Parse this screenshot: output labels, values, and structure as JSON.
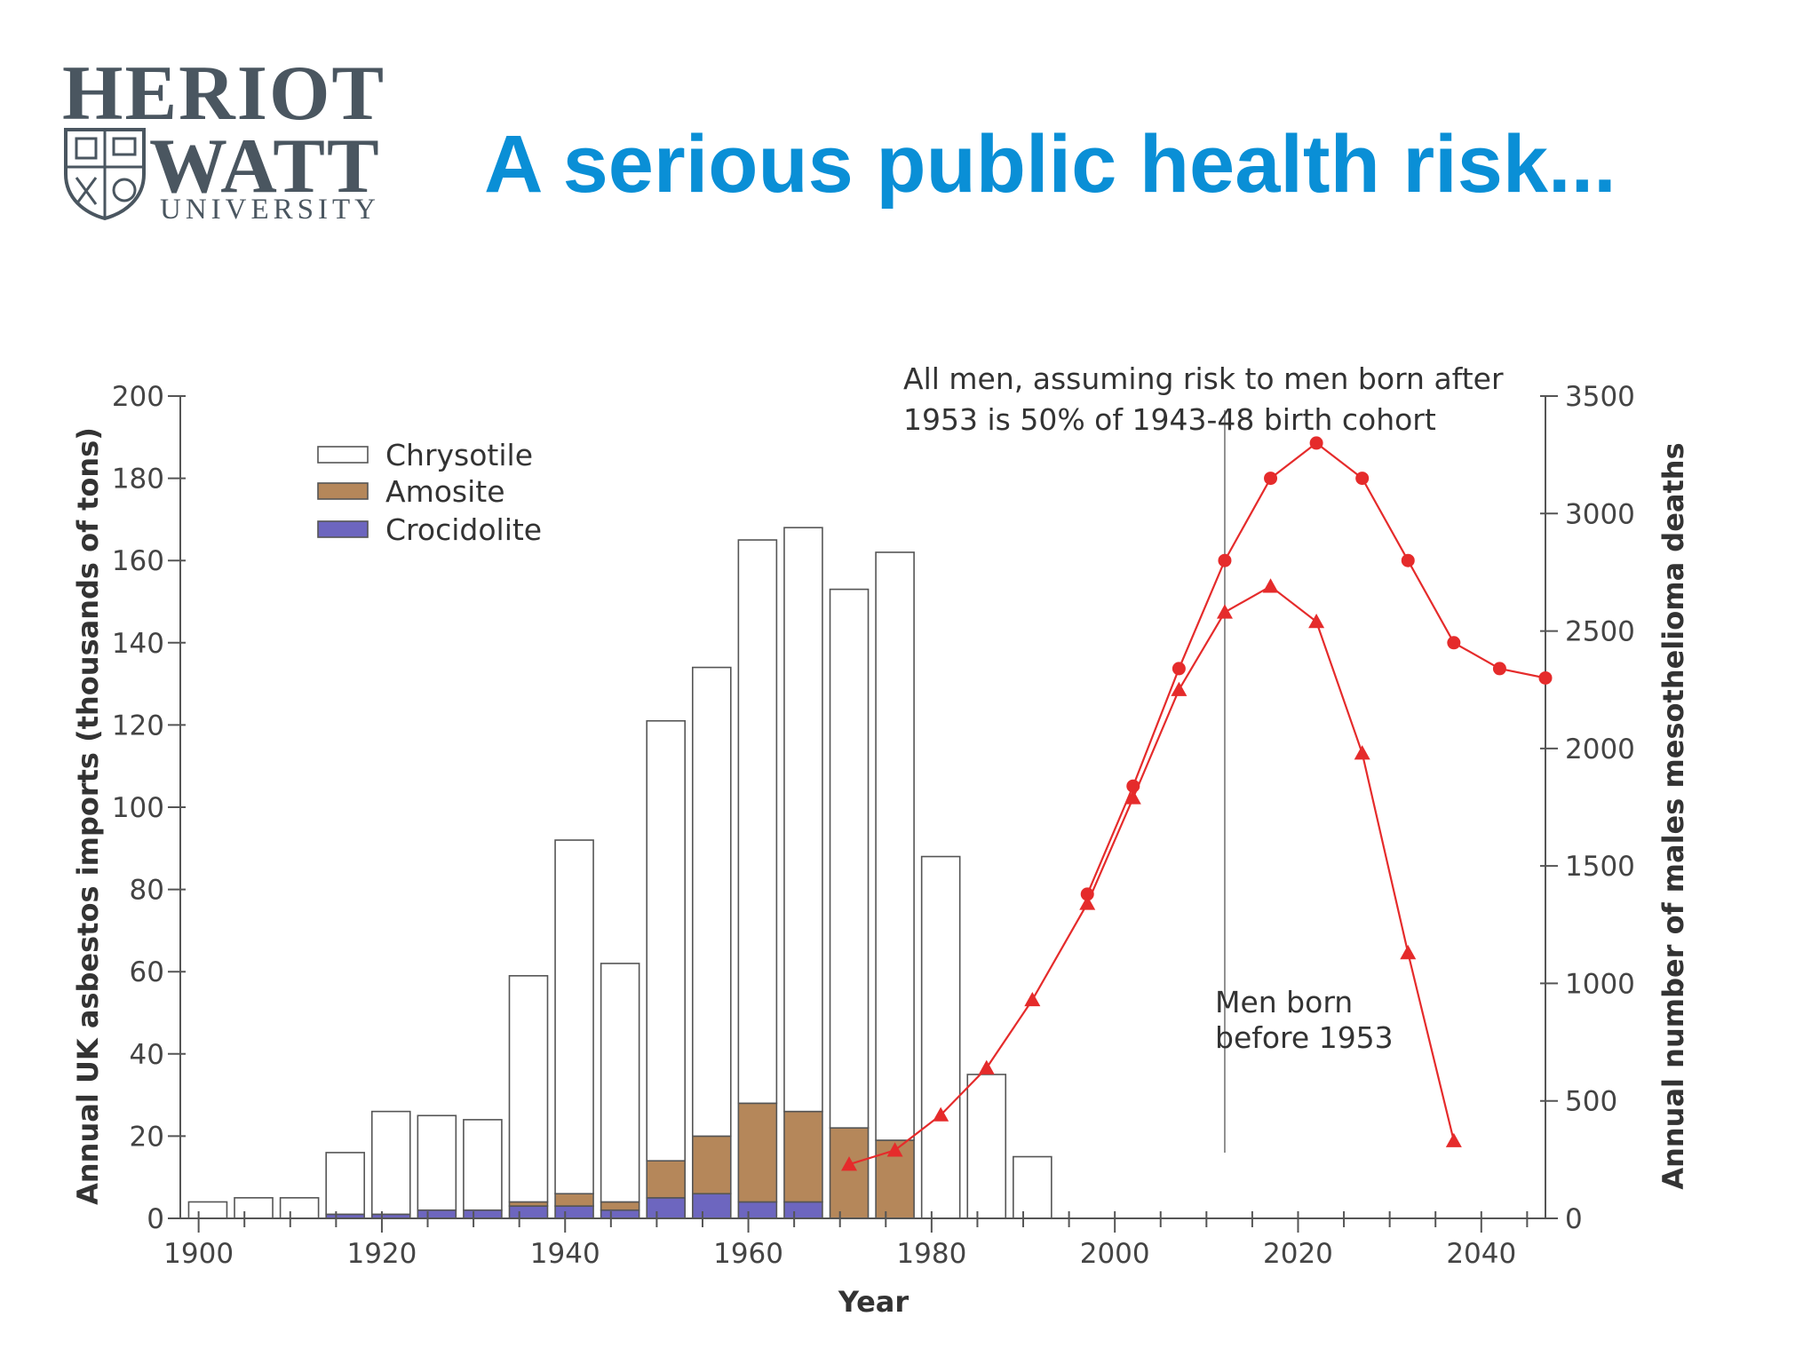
{
  "slide": {
    "title": "A serious public health risk..."
  },
  "logo": {
    "line1": "HERIOT",
    "line2": "WATT",
    "line3": "UNIVERSITY"
  },
  "chart_data": {
    "type": "bar",
    "title": "",
    "xlabel": "Year",
    "ylabel": "Annual UK asbestos imports (thousands of tons)",
    "y2label": "Annual number of males mesothelioma deaths",
    "xlim": [
      1898,
      2047
    ],
    "ylim": [
      0,
      200
    ],
    "y2lim": [
      0,
      3500
    ],
    "x_ticks": [
      1900,
      1920,
      1940,
      1960,
      1980,
      2000,
      2020,
      2040
    ],
    "y_ticks": [
      0,
      20,
      40,
      60,
      80,
      100,
      120,
      140,
      160,
      180,
      200
    ],
    "y2_ticks": [
      0,
      500,
      1000,
      1500,
      2000,
      2500,
      3000,
      3500
    ],
    "legend_position": "top-left",
    "bar_years": [
      1901,
      1906,
      1911,
      1916,
      1921,
      1926,
      1931,
      1936,
      1941,
      1946,
      1951,
      1956,
      1961,
      1966,
      1971,
      1976,
      1981,
      1986,
      1991
    ],
    "series": [
      {
        "name": "Chrysotile",
        "color": "#ffffff",
        "values": [
          4,
          5,
          5,
          15,
          25,
          23,
          22,
          55,
          86,
          58,
          107,
          114,
          137,
          142,
          131,
          143,
          88,
          35,
          15
        ]
      },
      {
        "name": "Amosite",
        "color": "#b5875a",
        "values": [
          0,
          0,
          0,
          0,
          0,
          0,
          0,
          1,
          3,
          2,
          9,
          14,
          24,
          22,
          22,
          19,
          0,
          0,
          0
        ]
      },
      {
        "name": "Crocidolite",
        "color": "#6d66bf",
        "values": [
          0,
          0,
          0,
          1,
          1,
          2,
          2,
          3,
          3,
          2,
          5,
          6,
          4,
          4,
          0,
          0,
          0,
          0,
          0
        ]
      }
    ],
    "lines": [
      {
        "name": "All men, assuming risk to men born after 1953 is 50% of 1943-48 birth cohort",
        "axis": "right",
        "marker": "circle",
        "color": "#e52b2b",
        "x": [
          1997,
          2002,
          2007,
          2012,
          2017,
          2022,
          2027,
          2032,
          2037,
          2042,
          2047
        ],
        "y": [
          1380,
          1840,
          2340,
          2800,
          3150,
          3300,
          3150,
          2800,
          2450,
          2340,
          2300
        ]
      },
      {
        "name": "Men born before 1953",
        "axis": "right",
        "marker": "triangle",
        "color": "#e52b2b",
        "x": [
          1971,
          1976,
          1981,
          1986,
          1991,
          1997,
          2002,
          2007,
          2012,
          2017,
          2022,
          2027,
          2032,
          2037
        ],
        "y": [
          230,
          290,
          440,
          640,
          930,
          1340,
          1790,
          2250,
          2580,
          2690,
          2540,
          1980,
          1130,
          330
        ]
      }
    ],
    "annotations": [
      "All men, assuming risk to men born after",
      "1953 is 50% of 1943-48 birth cohort",
      "Men born",
      "before 1953"
    ],
    "reference_line_year": 2012
  }
}
